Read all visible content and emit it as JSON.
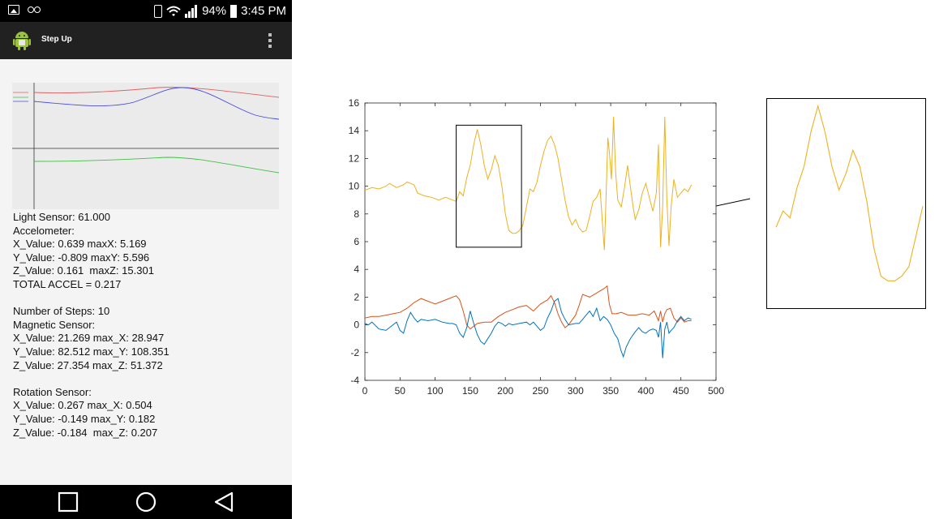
{
  "status_bar": {
    "battery": "94%",
    "time": "3:45 PM",
    "icons": [
      "image-icon",
      "voicemail-icon",
      "phone-outline-icon",
      "wifi-icon",
      "signal-icon",
      "battery-icon"
    ]
  },
  "app_bar": {
    "title": "Step Up",
    "icon": "android-icon",
    "menu_icon": "overflow-menu-icon"
  },
  "sensor_graph": {
    "series_colors": [
      "#e06060",
      "#4b4bdc",
      "#40c040"
    ]
  },
  "sensors": {
    "light": "Light Sensor: 61.000",
    "accel_header": "Accelometer:",
    "accel_x": "X_Value: 0.639 maxX: 5.169",
    "accel_y": "Y_Value: -0.809 maxY: 5.596",
    "accel_z": "Z_Value: 0.161  maxZ: 15.301",
    "total_accel": "TOTAL ACCEL = 0.217",
    "steps": "Number of Steps: 10",
    "mag_header": "Magnetic Sensor:",
    "mag_x": "X_Value: 21.269 max_X: 28.947",
    "mag_y": "Y_Value: 82.512 max_Y: 108.351",
    "mag_z": "Z_Value: 27.354 max_Z: 51.372",
    "rot_header": "Rotation Sensor:",
    "rot_x": "X_Value: 0.267 max_X: 0.504",
    "rot_y": "Y_Value: -0.149 max_Y: 0.182",
    "rot_z": "Z_Value: -0.184  max_Z: 0.207"
  },
  "nav_bar": {
    "icons": [
      "recent-apps-icon",
      "home-icon",
      "back-icon"
    ]
  },
  "chart_data": {
    "type": "line",
    "title": "",
    "xlabel": "",
    "ylabel": "",
    "xlim": [
      0,
      500
    ],
    "ylim": [
      -4,
      16
    ],
    "xticks": [
      "0",
      "50",
      "100",
      "150",
      "200",
      "250",
      "300",
      "350",
      "400",
      "450",
      "500"
    ],
    "yticks": [
      "-4",
      "-2",
      "0",
      "2",
      "4",
      "6",
      "8",
      "10",
      "12",
      "14",
      "16"
    ],
    "series": [
      {
        "color": "#edb120",
        "points": [
          [
            0,
            9.7
          ],
          [
            10,
            9.9
          ],
          [
            20,
            9.8
          ],
          [
            30,
            10.0
          ],
          [
            35,
            10.2
          ],
          [
            45,
            9.9
          ],
          [
            55,
            10.1
          ],
          [
            60,
            10.3
          ],
          [
            70,
            10.1
          ],
          [
            75,
            9.5
          ],
          [
            85,
            9.3
          ],
          [
            95,
            9.2
          ],
          [
            105,
            9.0
          ],
          [
            115,
            9.2
          ],
          [
            125,
            9.0
          ],
          [
            130,
            8.9
          ],
          [
            135,
            9.6
          ],
          [
            140,
            9.3
          ],
          [
            145,
            10.6
          ],
          [
            150,
            11.5
          ],
          [
            155,
            13.0
          ],
          [
            160,
            14.1
          ],
          [
            165,
            13.0
          ],
          [
            170,
            11.5
          ],
          [
            175,
            10.5
          ],
          [
            180,
            11.2
          ],
          [
            185,
            12.2
          ],
          [
            190,
            11.5
          ],
          [
            195,
            10.0
          ],
          [
            200,
            8.0
          ],
          [
            205,
            6.8
          ],
          [
            210,
            6.6
          ],
          [
            215,
            6.6
          ],
          [
            220,
            6.8
          ],
          [
            225,
            7.2
          ],
          [
            230,
            8.5
          ],
          [
            235,
            9.8
          ],
          [
            240,
            9.6
          ],
          [
            245,
            10.3
          ],
          [
            250,
            11.5
          ],
          [
            255,
            12.5
          ],
          [
            260,
            13.3
          ],
          [
            265,
            13.6
          ],
          [
            270,
            13.0
          ],
          [
            275,
            12.0
          ],
          [
            280,
            10.5
          ],
          [
            285,
            9.0
          ],
          [
            290,
            7.8
          ],
          [
            295,
            7.2
          ],
          [
            300,
            7.6
          ],
          [
            305,
            7.0
          ],
          [
            310,
            6.7
          ],
          [
            315,
            6.8
          ],
          [
            320,
            7.8
          ],
          [
            325,
            8.9
          ],
          [
            330,
            9.2
          ],
          [
            335,
            9.8
          ],
          [
            338,
            7.5
          ],
          [
            341,
            5.4
          ],
          [
            343,
            8.5
          ],
          [
            346,
            13.5
          ],
          [
            348,
            12.5
          ],
          [
            351,
            10.5
          ],
          [
            354,
            15.0
          ],
          [
            357,
            11.0
          ],
          [
            360,
            9.0
          ],
          [
            365,
            8.5
          ],
          [
            370,
            10.0
          ],
          [
            374,
            11.5
          ],
          [
            378,
            10.0
          ],
          [
            382,
            8.5
          ],
          [
            385,
            7.6
          ],
          [
            390,
            8.3
          ],
          [
            395,
            9.5
          ],
          [
            400,
            10.2
          ],
          [
            405,
            9.2
          ],
          [
            410,
            8.2
          ],
          [
            415,
            9.5
          ],
          [
            418,
            13.0
          ],
          [
            421,
            5.6
          ],
          [
            424,
            8.5
          ],
          [
            427,
            15.0
          ],
          [
            430,
            9.0
          ],
          [
            433,
            5.7
          ],
          [
            436,
            8.5
          ],
          [
            440,
            10.5
          ],
          [
            445,
            9.2
          ],
          [
            450,
            9.5
          ],
          [
            455,
            9.8
          ],
          [
            460,
            9.6
          ],
          [
            465,
            10.1
          ]
        ]
      },
      {
        "color": "#d95319",
        "points": [
          [
            0,
            0.5
          ],
          [
            10,
            0.6
          ],
          [
            20,
            0.6
          ],
          [
            30,
            0.7
          ],
          [
            40,
            0.8
          ],
          [
            50,
            0.9
          ],
          [
            60,
            1.2
          ],
          [
            70,
            1.6
          ],
          [
            80,
            1.9
          ],
          [
            90,
            1.7
          ],
          [
            100,
            1.5
          ],
          [
            110,
            1.7
          ],
          [
            120,
            1.9
          ],
          [
            130,
            2.1
          ],
          [
            135,
            1.8
          ],
          [
            140,
            1.0
          ],
          [
            145,
            0.0
          ],
          [
            150,
            -0.3
          ],
          [
            155,
            -0.1
          ],
          [
            160,
            0.1
          ],
          [
            170,
            0.2
          ],
          [
            180,
            0.2
          ],
          [
            190,
            0.6
          ],
          [
            200,
            0.9
          ],
          [
            210,
            1.1
          ],
          [
            220,
            1.3
          ],
          [
            230,
            1.4
          ],
          [
            240,
            1.0
          ],
          [
            250,
            1.5
          ],
          [
            260,
            1.8
          ],
          [
            265,
            2.1
          ],
          [
            270,
            1.6
          ],
          [
            275,
            0.8
          ],
          [
            280,
            0.2
          ],
          [
            285,
            -0.2
          ],
          [
            290,
            0.0
          ],
          [
            300,
            0.7
          ],
          [
            305,
            1.4
          ],
          [
            310,
            2.2
          ],
          [
            320,
            2.0
          ],
          [
            330,
            2.3
          ],
          [
            340,
            2.6
          ],
          [
            345,
            2.8
          ],
          [
            348,
            1.5
          ],
          [
            352,
            0.8
          ],
          [
            358,
            0.8
          ],
          [
            365,
            0.9
          ],
          [
            375,
            0.7
          ],
          [
            385,
            0.7
          ],
          [
            395,
            0.8
          ],
          [
            405,
            0.7
          ],
          [
            412,
            1.0
          ],
          [
            418,
            0.3
          ],
          [
            421,
            1.0
          ],
          [
            424,
            0.2
          ],
          [
            427,
            0.8
          ],
          [
            430,
            1.1
          ],
          [
            435,
            1.2
          ],
          [
            440,
            0.5
          ],
          [
            445,
            0.2
          ],
          [
            450,
            0.5
          ],
          [
            455,
            0.2
          ],
          [
            460,
            0.3
          ],
          [
            465,
            0.3
          ]
        ]
      },
      {
        "color": "#0072bd",
        "points": [
          [
            0,
            0.1
          ],
          [
            5,
            0.0
          ],
          [
            10,
            0.2
          ],
          [
            20,
            -0.3
          ],
          [
            30,
            -0.4
          ],
          [
            40,
            0.0
          ],
          [
            45,
            0.2
          ],
          [
            50,
            -0.4
          ],
          [
            55,
            -0.6
          ],
          [
            60,
            0.3
          ],
          [
            65,
            0.9
          ],
          [
            70,
            0.5
          ],
          [
            75,
            0.2
          ],
          [
            80,
            0.4
          ],
          [
            90,
            0.3
          ],
          [
            100,
            0.4
          ],
          [
            110,
            0.2
          ],
          [
            120,
            0.1
          ],
          [
            125,
            0.1
          ],
          [
            130,
            0.0
          ],
          [
            135,
            -0.6
          ],
          [
            140,
            -0.9
          ],
          [
            145,
            -0.2
          ],
          [
            150,
            1.0
          ],
          [
            155,
            0.1
          ],
          [
            160,
            -0.7
          ],
          [
            165,
            -1.2
          ],
          [
            170,
            -1.4
          ],
          [
            175,
            -1.0
          ],
          [
            180,
            -0.6
          ],
          [
            185,
            -0.1
          ],
          [
            190,
            0.2
          ],
          [
            195,
            0.1
          ],
          [
            200,
            -0.1
          ],
          [
            205,
            0.1
          ],
          [
            210,
            0.0
          ],
          [
            220,
            0.1
          ],
          [
            230,
            0.2
          ],
          [
            235,
            0.0
          ],
          [
            240,
            0.2
          ],
          [
            250,
            -0.4
          ],
          [
            255,
            -0.2
          ],
          [
            260,
            0.5
          ],
          [
            265,
            1.0
          ],
          [
            270,
            1.7
          ],
          [
            275,
            1.9
          ],
          [
            280,
            0.9
          ],
          [
            285,
            0.4
          ],
          [
            290,
            0.0
          ],
          [
            300,
            0.1
          ],
          [
            305,
            0.1
          ],
          [
            310,
            0.4
          ],
          [
            315,
            0.7
          ],
          [
            320,
            1.0
          ],
          [
            325,
            0.6
          ],
          [
            330,
            1.2
          ],
          [
            335,
            0.3
          ],
          [
            340,
            0.6
          ],
          [
            345,
            0.4
          ],
          [
            350,
            0.0
          ],
          [
            355,
            -0.6
          ],
          [
            360,
            -1.0
          ],
          [
            365,
            -1.9
          ],
          [
            368,
            -2.3
          ],
          [
            372,
            -1.6
          ],
          [
            378,
            -1.0
          ],
          [
            385,
            -0.5
          ],
          [
            390,
            -0.2
          ],
          [
            395,
            -0.5
          ],
          [
            400,
            -0.6
          ],
          [
            405,
            -0.4
          ],
          [
            410,
            -0.3
          ],
          [
            415,
            -0.4
          ],
          [
            418,
            -0.9
          ],
          [
            421,
            0.2
          ],
          [
            424,
            -2.4
          ],
          [
            427,
            -0.3
          ],
          [
            430,
            0.2
          ],
          [
            433,
            -0.6
          ],
          [
            436,
            -0.4
          ],
          [
            440,
            -0.2
          ],
          [
            445,
            0.3
          ],
          [
            450,
            0.6
          ],
          [
            455,
            0.3
          ],
          [
            460,
            0.5
          ],
          [
            465,
            0.4
          ]
        ]
      }
    ],
    "zoom_window": {
      "x_range": [
        130,
        223
      ],
      "y_range": [
        5.6,
        14.4
      ]
    }
  }
}
